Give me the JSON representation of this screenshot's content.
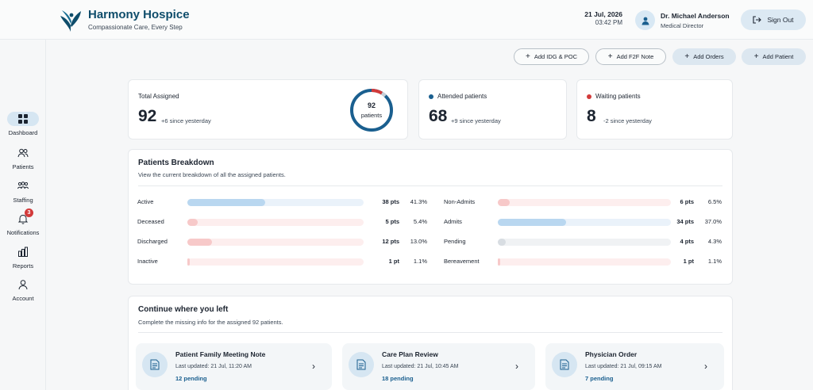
{
  "brand": {
    "name": "Harmony Hospice",
    "tagline": "Compassionate Care, Every Step"
  },
  "header": {
    "date": "21 Jul, 2026",
    "time": "03:42 PM",
    "user_name": "Dr. Michael Anderson",
    "user_role": "Medical Director",
    "signout_label": "Sign Out"
  },
  "sidebar": {
    "items": [
      {
        "label": "Dashboard",
        "icon": "dashboard-icon",
        "active": true
      },
      {
        "label": "Patients",
        "icon": "patients-icon"
      },
      {
        "label": "Staffing",
        "icon": "staffing-icon"
      },
      {
        "label": "Notifications",
        "icon": "bell-icon",
        "badge": "3"
      },
      {
        "label": "Reports",
        "icon": "reports-icon"
      },
      {
        "label": "Account",
        "icon": "account-icon"
      }
    ]
  },
  "actions": {
    "idg": "Add IDG & POC",
    "f2f": "Add F2F Note",
    "orders": "Add Orders",
    "patient": "Add Patient"
  },
  "stats": {
    "total": {
      "label": "Total Assigned",
      "value": "92",
      "delta": "+6 since yesterday",
      "ring_value": "92",
      "ring_label": "patients"
    },
    "attended": {
      "label": "Attended patients",
      "value": "68",
      "delta": "+9 since yesterday",
      "color": "#1a5f8f"
    },
    "waiting": {
      "label": "Waiting patients",
      "value": "8",
      "delta": "-2 since yesterday",
      "color": "#d23a3a"
    }
  },
  "breakdown": {
    "title": "Patients Breakdown",
    "subtitle": "View the current breakdown of all the assigned patients.",
    "left": [
      {
        "label": "Active",
        "pts": "38 pts",
        "pct": "41.3%",
        "fraction": 0.413,
        "fill": "#b9d7f0",
        "track": "#eaf2fa"
      },
      {
        "label": "Deceased",
        "pts": "5 pts",
        "pct": "5.4%",
        "fraction": 0.054,
        "fill": "#f7c9c9",
        "track": "#fdeeee"
      },
      {
        "label": "Discharged",
        "pts": "12 pts",
        "pct": "13.0%",
        "fraction": 0.13,
        "fill": "#f7c9c9",
        "track": "#fdeeee"
      },
      {
        "label": "Inactive",
        "pts": "1 pt",
        "pct": "1.1%",
        "fraction": 0.011,
        "fill": "#f7c9c9",
        "track": "#fdeeee"
      }
    ],
    "right": [
      {
        "label": "Non-Admits",
        "pts": "6 pts",
        "pct": "6.5%",
        "fraction": 0.065,
        "fill": "#f7c9c9",
        "track": "#fdeeee"
      },
      {
        "label": "Admits",
        "pts": "34 pts",
        "pct": "37.0%",
        "fraction": 0.37,
        "fill": "#b9d7f0",
        "track": "#eaf2fa"
      },
      {
        "label": "Pending",
        "pts": "4 pts",
        "pct": "4.3%",
        "fraction": 0.043,
        "fill": "#d8dde2",
        "track": "#f0f2f4"
      },
      {
        "label": "Bereavement",
        "pts": "1 pt",
        "pct": "1.1%",
        "fraction": 0.011,
        "fill": "#f7c9c9",
        "track": "#fdeeee"
      }
    ]
  },
  "continue": {
    "title": "Continue where you left",
    "subtitle": "Complete the missing info for the assigned 92 patients.",
    "tasks": [
      {
        "title": "Patient Family Meeting Note",
        "updated": "Last updated: 21 Jul, 11:20 AM",
        "pending": "12 pending"
      },
      {
        "title": "Care Plan Review",
        "updated": "Last updated: 21 Jul, 10:45 AM",
        "pending": "18 pending"
      },
      {
        "title": "Physician Order",
        "updated": "Last updated: 21 Jul, 09:15 AM",
        "pending": "7 pending"
      }
    ]
  }
}
